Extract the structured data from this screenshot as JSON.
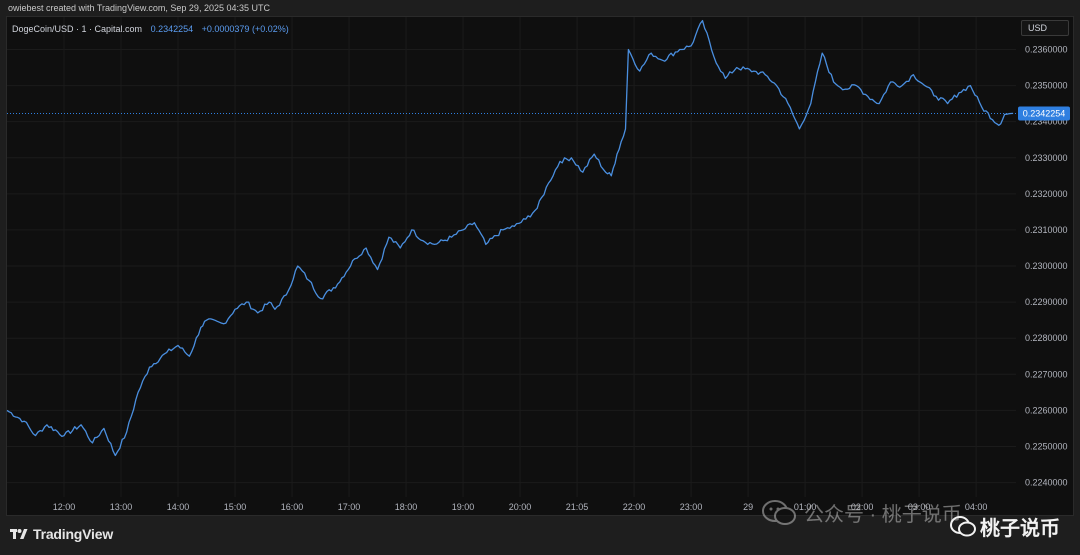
{
  "header": {
    "credit": "owiebest created with TradingView.com, Sep 29, 2025 04:35 UTC"
  },
  "legend": {
    "symbol": "DogeCoin/USD · 1 · Capital.com",
    "price": "0.2342254",
    "change": "+0.0000379 (+0.02%)"
  },
  "currency": "USD",
  "brand": {
    "name": "TradingView"
  },
  "watermark": {
    "text": "公众号 · 桃子说币",
    "account": "桃子说币"
  },
  "colors": {
    "line": "#4a8fe0",
    "background": "#0f0f0f",
    "price_label": "#2f7fe0",
    "grid": "#1b1b1b"
  },
  "chart_data": {
    "type": "line",
    "title": "DogeCoin/USD · 1 · Capital.com",
    "xlabel": "",
    "ylabel": "",
    "ylim": [
      0.2236,
      0.2369
    ],
    "y_ticks": [
      0.224,
      0.225,
      0.226,
      0.227,
      0.228,
      0.229,
      0.23,
      0.231,
      0.232,
      0.233,
      0.234,
      0.235,
      0.236
    ],
    "y_tick_labels": [
      "0.2240000",
      "0.2250000",
      "0.2260000",
      "0.2270000",
      "0.2280000",
      "0.2290000",
      "0.2300000",
      "0.2310000",
      "0.2320000",
      "0.2330000",
      "0.2340000",
      "0.2350000",
      "0.2360000"
    ],
    "x_tick_labels": [
      "12:00",
      "13:00",
      "14:00",
      "15:00",
      "16:00",
      "17:00",
      "18:00",
      "19:00",
      "20:00",
      "21:05",
      "22:00",
      "23:00",
      "29",
      "01:00",
      "02:00",
      "03:00",
      "04:00"
    ],
    "x_tick_positions": [
      11.5,
      12.5,
      13.5,
      14.5,
      15.5,
      16.5,
      17.5,
      18.5,
      19.5,
      20.5,
      21.5,
      22.5,
      23.5,
      24.5,
      25.5,
      26.5,
      27.5
    ],
    "x_range": [
      10.5,
      28.2
    ],
    "current_price": 0.2342254,
    "current_price_label": "0.2342254",
    "series": [
      {
        "x": [
          10.5,
          10.8,
          11.0,
          11.2,
          11.5,
          11.8,
          12.0,
          12.2,
          12.4,
          12.6,
          12.8,
          13.0,
          13.3,
          13.5,
          13.7,
          13.9,
          14.0,
          14.3,
          14.5,
          14.7,
          14.9,
          15.1,
          15.2,
          15.4,
          15.6,
          15.8,
          16.0,
          16.3,
          16.6,
          16.8,
          17.0,
          17.2,
          17.4,
          17.6,
          17.8,
          18.0,
          18.3,
          18.5,
          18.7,
          18.9,
          19.2,
          19.4,
          19.6,
          19.8,
          20.0,
          20.2,
          20.4,
          20.6,
          20.8,
          21.0,
          21.1,
          21.2,
          21.35,
          21.4,
          21.6,
          21.8,
          22.0,
          22.3,
          22.5,
          22.7,
          22.9,
          23.1,
          23.3,
          23.6,
          23.8,
          24.0,
          24.2,
          24.4,
          24.6,
          24.8,
          25.0,
          25.2,
          25.4,
          25.6,
          25.8,
          26.0,
          26.2,
          26.4,
          26.6,
          26.8,
          27.0,
          27.2,
          27.4,
          27.6,
          27.9,
          28.0,
          28.15
        ],
        "y": [
          0.226,
          0.2257,
          0.2253,
          0.2256,
          0.2253,
          0.2256,
          0.2251,
          0.2255,
          0.22475,
          0.2254,
          0.2265,
          0.2272,
          0.2276,
          0.2278,
          0.2275,
          0.2283,
          0.2285,
          0.2284,
          0.2288,
          0.229,
          0.2287,
          0.229,
          0.2288,
          0.2292,
          0.23,
          0.2296,
          0.2291,
          0.2295,
          0.2302,
          0.2305,
          0.2299,
          0.2308,
          0.2305,
          0.231,
          0.2307,
          0.2306,
          0.2308,
          0.231,
          0.2312,
          0.2306,
          0.231,
          0.2311,
          0.2313,
          0.2316,
          0.2323,
          0.2329,
          0.233,
          0.2326,
          0.2331,
          0.2326,
          0.2325,
          0.2331,
          0.2338,
          0.236,
          0.2354,
          0.2359,
          0.2357,
          0.236,
          0.2361,
          0.2368,
          0.2358,
          0.2352,
          0.2355,
          0.2354,
          0.2353,
          0.235,
          0.2345,
          0.2338,
          0.2345,
          0.2359,
          0.2351,
          0.2349,
          0.235,
          0.2347,
          0.2345,
          0.2351,
          0.235,
          0.2353,
          0.235,
          0.2347,
          0.2345,
          0.2348,
          0.235,
          0.2344,
          0.2339,
          0.2342,
          0.23423
        ]
      }
    ]
  }
}
